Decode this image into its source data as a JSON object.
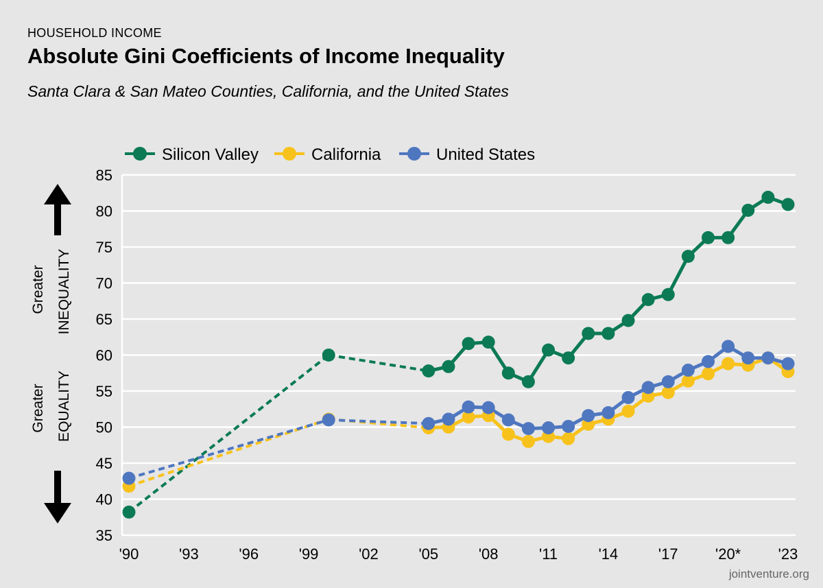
{
  "header": {
    "eyebrow": "HOUSEHOLD INCOME",
    "title": "Absolute Gini Coefficients of Income Inequality",
    "subtitle": "Santa Clara & San Mateo Counties, California, and the United States"
  },
  "side_labels": {
    "top_line1": "Greater",
    "top_line2": "INEQUALITY",
    "bottom_line1": "Greater",
    "bottom_line2": "EQUALITY"
  },
  "source": "jointventure.org",
  "colors": {
    "silicon_valley": "#0b7a55",
    "california": "#f8c21c",
    "united_states": "#4f77c0",
    "grid": "#ffffff",
    "background": "#e6e6e6"
  },
  "chart_data": {
    "type": "line",
    "title": "Absolute Gini Coefficients of Income Inequality",
    "xlabel": "",
    "ylabel": "",
    "ylim": [
      35,
      85
    ],
    "yticks": [
      35,
      40,
      45,
      50,
      55,
      60,
      65,
      70,
      75,
      80,
      85
    ],
    "xlim": [
      1990,
      2023
    ],
    "xticks": [
      {
        "value": 1990,
        "label": "'90"
      },
      {
        "value": 1993,
        "label": "'93"
      },
      {
        "value": 1996,
        "label": "'96"
      },
      {
        "value": 1999,
        "label": "'99"
      },
      {
        "value": 2002,
        "label": "'02"
      },
      {
        "value": 2005,
        "label": "'05"
      },
      {
        "value": 2008,
        "label": "'08"
      },
      {
        "value": 2011,
        "label": "'11"
      },
      {
        "value": 2014,
        "label": "'14"
      },
      {
        "value": 2017,
        "label": "'17"
      },
      {
        "value": 2020,
        "label": "'20*"
      },
      {
        "value": 2023,
        "label": "'23"
      }
    ],
    "legend_position": "top-left",
    "dashed_segments": "1990-2000 and 2000-2005 are interpolated (dashed)",
    "series": [
      {
        "name": "Silicon Valley",
        "color_key": "silicon_valley",
        "x": [
          1990,
          2000,
          2005,
          2006,
          2007,
          2008,
          2009,
          2010,
          2011,
          2012,
          2013,
          2014,
          2015,
          2016,
          2017,
          2018,
          2019,
          2020,
          2021,
          2022,
          2023
        ],
        "values": [
          38.2,
          60.0,
          57.8,
          58.4,
          61.6,
          61.8,
          57.5,
          56.3,
          60.7,
          59.6,
          63.0,
          63.0,
          64.8,
          67.7,
          68.4,
          73.7,
          76.3,
          76.3,
          80.1,
          81.9,
          80.9
        ]
      },
      {
        "name": "California",
        "color_key": "california",
        "x": [
          1990,
          2000,
          2005,
          2006,
          2007,
          2008,
          2009,
          2010,
          2011,
          2012,
          2013,
          2014,
          2015,
          2016,
          2017,
          2018,
          2019,
          2020,
          2021,
          2022,
          2023
        ],
        "values": [
          41.8,
          51.1,
          49.9,
          50.0,
          51.4,
          51.6,
          49.0,
          48.0,
          48.7,
          48.4,
          50.4,
          51.1,
          52.2,
          54.3,
          54.8,
          56.4,
          57.4,
          58.8,
          58.6,
          59.6,
          57.7
        ]
      },
      {
        "name": "United States",
        "color_key": "united_states",
        "x": [
          1990,
          2000,
          2005,
          2006,
          2007,
          2008,
          2009,
          2010,
          2011,
          2012,
          2013,
          2014,
          2015,
          2016,
          2017,
          2018,
          2019,
          2020,
          2021,
          2022,
          2023
        ],
        "values": [
          42.9,
          51.0,
          50.5,
          51.1,
          52.8,
          52.7,
          51.0,
          49.8,
          49.9,
          50.1,
          51.6,
          52.0,
          54.1,
          55.5,
          56.3,
          57.9,
          59.1,
          61.2,
          59.6,
          59.6,
          58.8
        ]
      }
    ]
  }
}
